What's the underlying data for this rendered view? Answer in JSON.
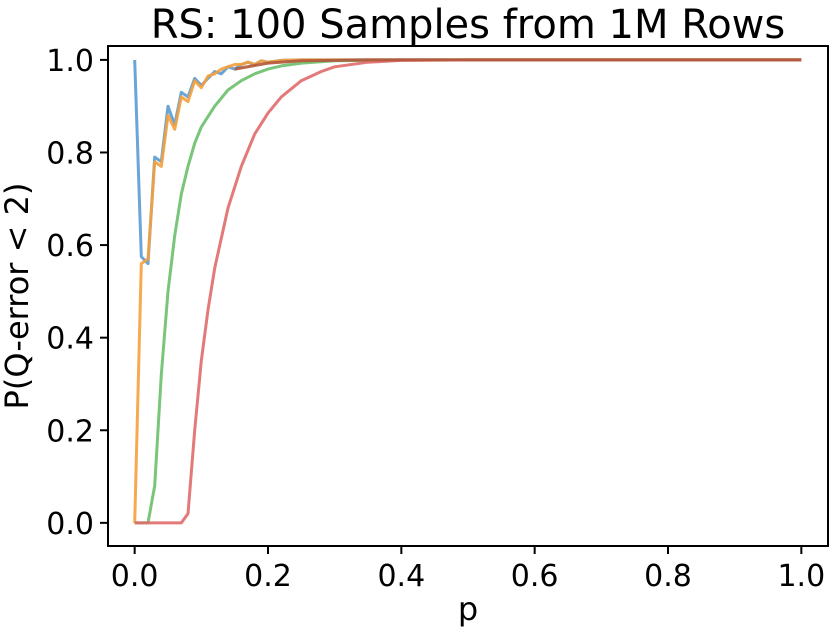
{
  "chart_data": {
    "type": "line",
    "title": "RS: 100 Samples from 1M Rows",
    "xlabel": "p",
    "ylabel": "P(Q-error < 2)",
    "xlim": [
      -0.04,
      1.04
    ],
    "ylim": [
      -0.05,
      1.03
    ],
    "xticks": [
      0.0,
      0.2,
      0.4,
      0.6,
      0.8,
      1.0
    ],
    "xtick_labels": [
      "0.0",
      "0.2",
      "0.4",
      "0.6",
      "0.8",
      "1.0"
    ],
    "yticks": [
      0.0,
      0.2,
      0.4,
      0.6,
      0.8,
      1.0
    ],
    "ytick_labels": [
      "0.0",
      "0.2",
      "0.4",
      "0.6",
      "0.8",
      "1.0"
    ],
    "grid": false,
    "legend": false,
    "series": [
      {
        "color": "#5a9bd4",
        "x": [
          0.0,
          0.01,
          0.02,
          0.03,
          0.04,
          0.05,
          0.06,
          0.07,
          0.08,
          0.09,
          0.1,
          0.11,
          0.12,
          0.13,
          0.14,
          0.15,
          0.16,
          0.17,
          0.18,
          0.19,
          0.2,
          0.22,
          0.25,
          0.3,
          0.4,
          0.6,
          0.8,
          1.0
        ],
        "y": [
          1.0,
          0.575,
          0.56,
          0.79,
          0.78,
          0.9,
          0.86,
          0.93,
          0.92,
          0.96,
          0.945,
          0.96,
          0.975,
          0.97,
          0.985,
          0.98,
          0.99,
          0.995,
          0.99,
          0.998,
          0.995,
          0.999,
          1.0,
          1.0,
          1.0,
          1.0,
          1.0,
          1.0
        ]
      },
      {
        "color": "#f5a03c",
        "x": [
          0.0,
          0.0001,
          0.01,
          0.02,
          0.03,
          0.04,
          0.05,
          0.06,
          0.07,
          0.08,
          0.09,
          0.1,
          0.11,
          0.12,
          0.13,
          0.14,
          0.15,
          0.16,
          0.17,
          0.18,
          0.19,
          0.2,
          0.22,
          0.25,
          0.3,
          0.4,
          0.6,
          0.8,
          1.0
        ],
        "y": [
          0.0,
          0.0,
          0.56,
          0.57,
          0.78,
          0.77,
          0.88,
          0.85,
          0.92,
          0.91,
          0.955,
          0.94,
          0.965,
          0.97,
          0.98,
          0.985,
          0.99,
          0.99,
          0.995,
          0.99,
          0.998,
          0.995,
          0.999,
          1.0,
          1.0,
          1.0,
          1.0,
          1.0,
          1.0
        ]
      },
      {
        "color": "#6abf6a",
        "x": [
          0.0,
          0.02,
          0.03,
          0.04,
          0.05,
          0.06,
          0.07,
          0.08,
          0.09,
          0.1,
          0.12,
          0.14,
          0.16,
          0.18,
          0.2,
          0.22,
          0.25,
          0.3,
          0.35,
          0.4,
          0.5,
          0.6,
          0.8,
          1.0
        ],
        "y": [
          0.0,
          0.0,
          0.08,
          0.32,
          0.5,
          0.62,
          0.71,
          0.77,
          0.82,
          0.855,
          0.9,
          0.935,
          0.955,
          0.97,
          0.98,
          0.987,
          0.993,
          0.998,
          0.999,
          1.0,
          1.0,
          1.0,
          1.0,
          1.0
        ]
      },
      {
        "color": "#e06a6a",
        "x": [
          0.0,
          0.07,
          0.08,
          0.09,
          0.1,
          0.11,
          0.12,
          0.14,
          0.16,
          0.18,
          0.2,
          0.22,
          0.25,
          0.28,
          0.3,
          0.35,
          0.4,
          0.5,
          0.6,
          0.8,
          1.0
        ],
        "y": [
          0.0,
          0.0,
          0.02,
          0.2,
          0.35,
          0.46,
          0.55,
          0.68,
          0.77,
          0.84,
          0.885,
          0.92,
          0.955,
          0.975,
          0.985,
          0.995,
          0.999,
          1.0,
          1.0,
          1.0,
          1.0
        ]
      },
      {
        "color": "#b3573c",
        "x": [
          0.15,
          0.2,
          0.25,
          0.3,
          0.35,
          0.4,
          0.5,
          0.6,
          0.8,
          1.0
        ],
        "y": [
          0.98,
          0.993,
          0.998,
          0.999,
          1.0,
          1.0,
          1.0,
          1.0,
          1.0,
          1.0
        ]
      }
    ]
  }
}
